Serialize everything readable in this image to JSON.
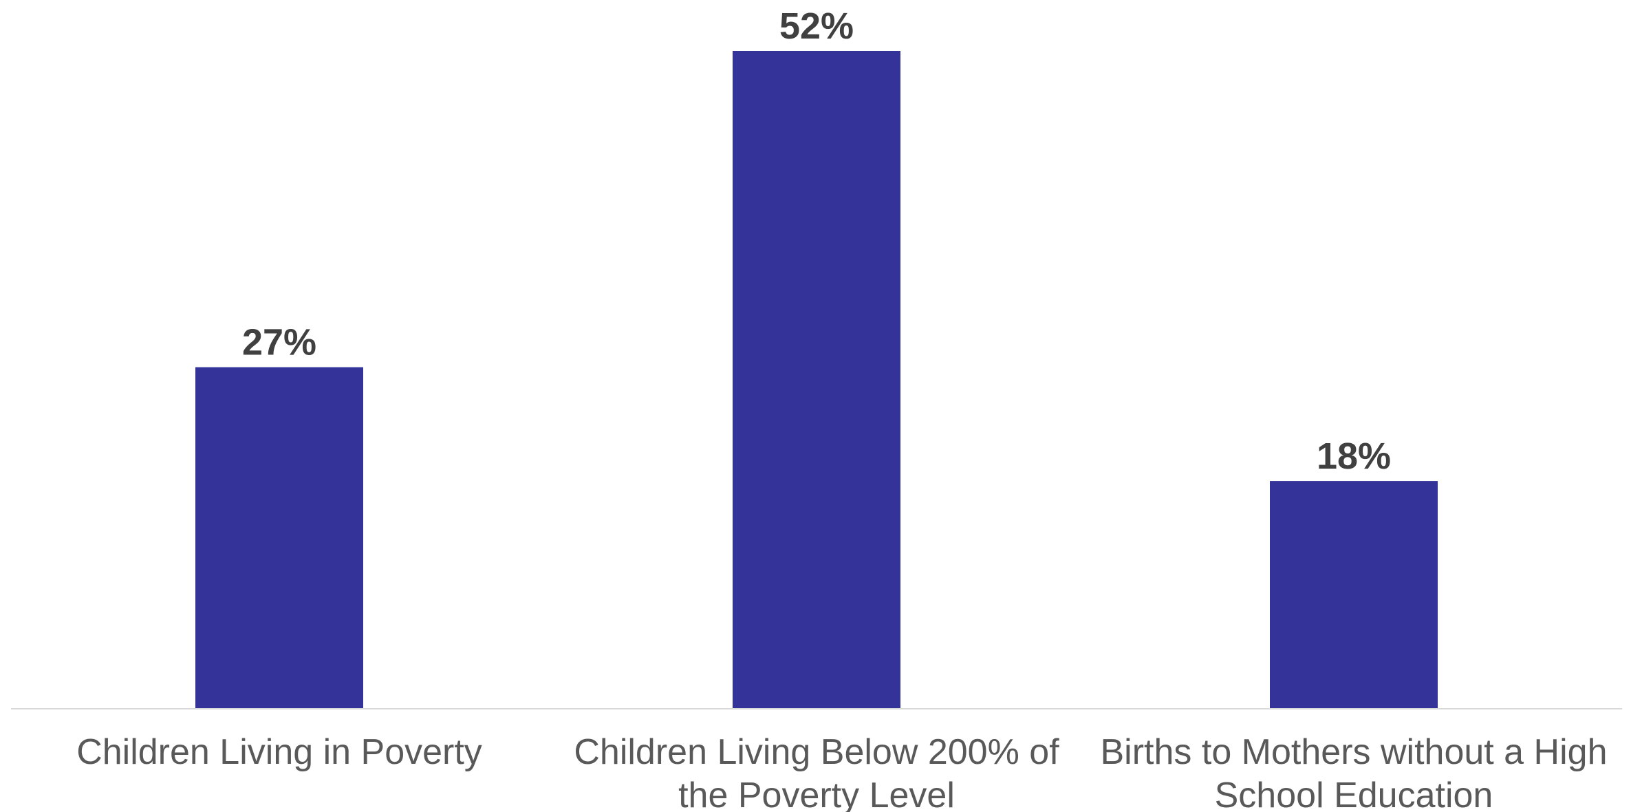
{
  "chart_data": {
    "type": "bar",
    "categories": [
      [
        "Children Living in Poverty"
      ],
      [
        "Children Living Below 200% of",
        "the Poverty Level"
      ],
      [
        "Births to Mothers without a High",
        "School Education"
      ]
    ],
    "values": [
      27,
      52,
      18
    ],
    "value_labels": [
      "27%",
      "52%",
      "18%"
    ],
    "ylim": [
      0,
      52
    ],
    "grid": false,
    "legend": "none",
    "bar_color": "#343399",
    "axis_color": "#d9d9d9"
  }
}
